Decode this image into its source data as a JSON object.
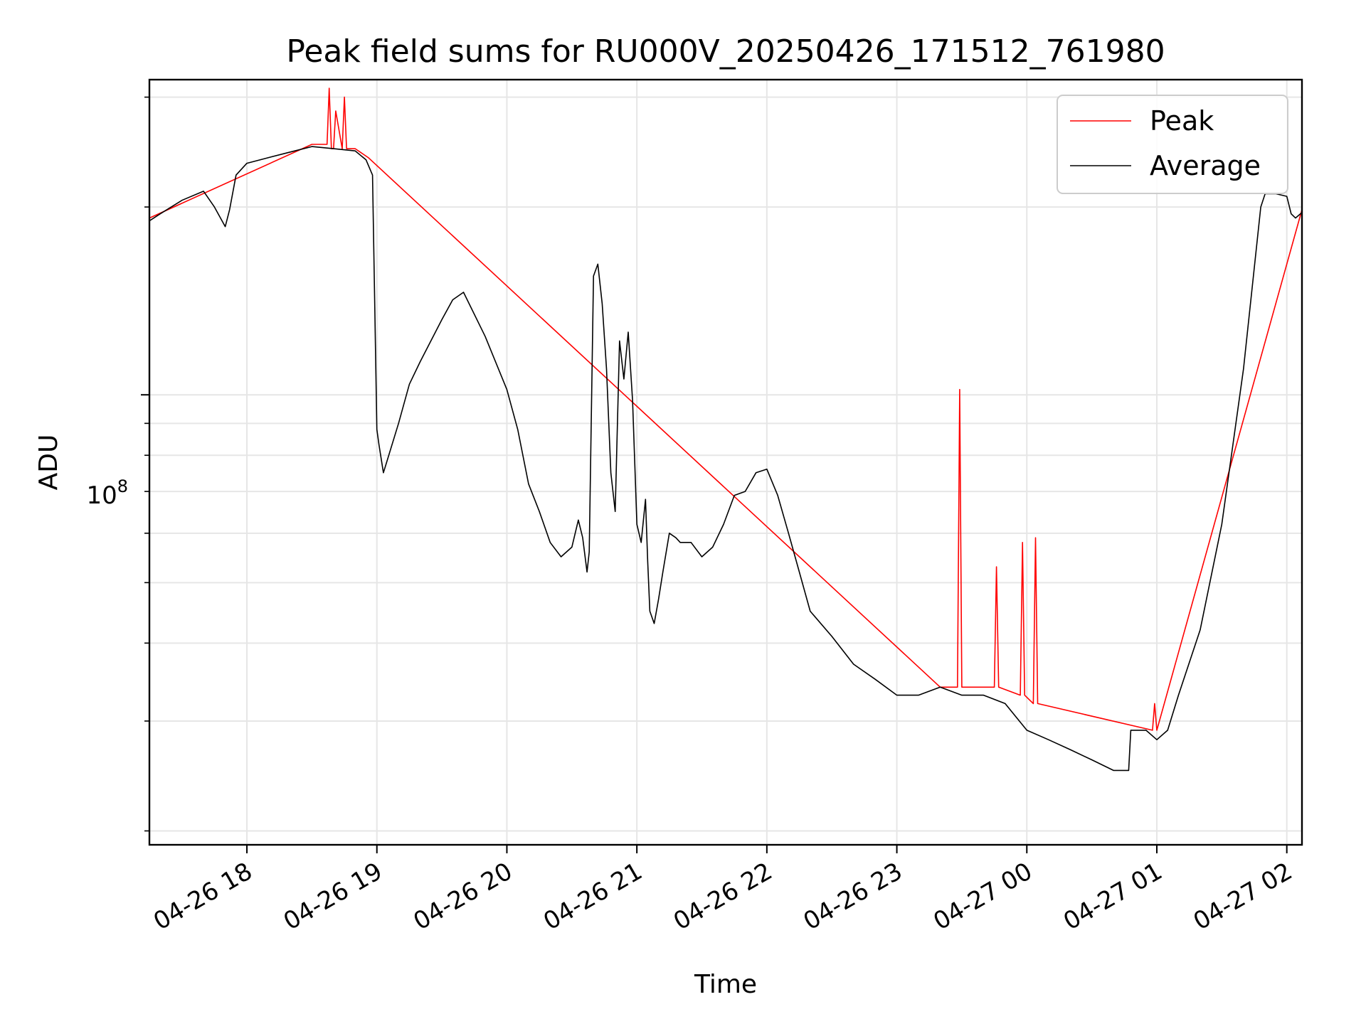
{
  "chart_data": {
    "type": "line",
    "title": "Peak field sums for RU000V_20250426_171512_761980",
    "xlabel": "Time",
    "ylabel": "ADU",
    "yscale": "log",
    "y_tick_label": "10^8",
    "y_tick_base": "10",
    "y_tick_exp": "8",
    "y_tick_value": 100000000,
    "ylim": [
      19000000,
      320000000
    ],
    "xlim": [
      "2025-04-26 17:15",
      "2025-04-27 02:07"
    ],
    "x_ticks": [
      {
        "t": "2025-04-26 18:00",
        "label": "04-26 18"
      },
      {
        "t": "2025-04-26 19:00",
        "label": "04-26 19"
      },
      {
        "t": "2025-04-26 20:00",
        "label": "04-26 20"
      },
      {
        "t": "2025-04-26 21:00",
        "label": "04-26 21"
      },
      {
        "t": "2025-04-26 22:00",
        "label": "04-26 22"
      },
      {
        "t": "2025-04-26 23:00",
        "label": "04-26 23"
      },
      {
        "t": "2025-04-27 00:00",
        "label": "04-27 00"
      },
      {
        "t": "2025-04-27 01:00",
        "label": "04-27 01"
      },
      {
        "t": "2025-04-27 02:00",
        "label": "04-27 02"
      }
    ],
    "grid": true,
    "legend_position": "top-right",
    "series": [
      {
        "name": "Average",
        "color": "#000000",
        "x": [
          "2025-04-26 17:15",
          "2025-04-26 17:20",
          "2025-04-26 17:30",
          "2025-04-26 17:40",
          "2025-04-26 17:45",
          "2025-04-26 17:50",
          "2025-04-26 17:52",
          "2025-04-26 17:55",
          "2025-04-26 18:00",
          "2025-04-26 18:10",
          "2025-04-26 18:20",
          "2025-04-26 18:30",
          "2025-04-26 18:40",
          "2025-04-26 18:50",
          "2025-04-26 18:55",
          "2025-04-26 18:58",
          "2025-04-26 19:00",
          "2025-04-26 19:01",
          "2025-04-26 19:03",
          "2025-04-26 19:05",
          "2025-04-26 19:10",
          "2025-04-26 19:15",
          "2025-04-26 19:20",
          "2025-04-26 19:30",
          "2025-04-26 19:35",
          "2025-04-26 19:40",
          "2025-04-26 19:50",
          "2025-04-26 20:00",
          "2025-04-26 20:05",
          "2025-04-26 20:10",
          "2025-04-26 20:15",
          "2025-04-26 20:20",
          "2025-04-26 20:25",
          "2025-04-26 20:30",
          "2025-04-26 20:33",
          "2025-04-26 20:35",
          "2025-04-26 20:37",
          "2025-04-26 20:38",
          "2025-04-26 20:40",
          "2025-04-26 20:42",
          "2025-04-26 20:44",
          "2025-04-26 20:46",
          "2025-04-26 20:48",
          "2025-04-26 20:50",
          "2025-04-26 20:52",
          "2025-04-26 20:54",
          "2025-04-26 20:56",
          "2025-04-26 20:58",
          "2025-04-26 21:00",
          "2025-04-26 21:02",
          "2025-04-26 21:04",
          "2025-04-26 21:05",
          "2025-04-26 21:06",
          "2025-04-26 21:08",
          "2025-04-26 21:10",
          "2025-04-26 21:12",
          "2025-04-26 21:15",
          "2025-04-26 21:18",
          "2025-04-26 21:20",
          "2025-04-26 21:25",
          "2025-04-26 21:30",
          "2025-04-26 21:35",
          "2025-04-26 21:40",
          "2025-04-26 21:45",
          "2025-04-26 21:50",
          "2025-04-26 21:55",
          "2025-04-26 22:00",
          "2025-04-26 22:05",
          "2025-04-26 22:10",
          "2025-04-26 22:15",
          "2025-04-26 22:20",
          "2025-04-26 22:30",
          "2025-04-26 22:40",
          "2025-04-26 22:50",
          "2025-04-26 23:00",
          "2025-04-26 23:10",
          "2025-04-26 23:20",
          "2025-04-26 23:30",
          "2025-04-26 23:40",
          "2025-04-26 23:50",
          "2025-04-27 00:00",
          "2025-04-27 00:10",
          "2025-04-27 00:20",
          "2025-04-27 00:30",
          "2025-04-27 00:40",
          "2025-04-27 00:47",
          "2025-04-27 00:48",
          "2025-04-27 00:55",
          "2025-04-27 01:00",
          "2025-04-27 01:05",
          "2025-04-27 01:10",
          "2025-04-27 01:20",
          "2025-04-27 01:30",
          "2025-04-27 01:40",
          "2025-04-27 01:48",
          "2025-04-27 01:50",
          "2025-04-27 01:55",
          "2025-04-27 02:00",
          "2025-04-27 02:02",
          "2025-04-27 02:04",
          "2025-04-27 02:07"
        ],
        "values": [
          190000000,
          195000000,
          205000000,
          212000000,
          200000000,
          186000000,
          198000000,
          225000000,
          235000000,
          240000000,
          245000000,
          250000000,
          248000000,
          246000000,
          238000000,
          225000000,
          88000000,
          83000000,
          75000000,
          79000000,
          90000000,
          104000000,
          113000000,
          132000000,
          142000000,
          146000000,
          124000000,
          102000000,
          88000000,
          72000000,
          65000000,
          58000000,
          55000000,
          57000000,
          63000000,
          59000000,
          52000000,
          56000000,
          155000000,
          162000000,
          140000000,
          110000000,
          75000000,
          65000000,
          122000000,
          106000000,
          126000000,
          98000000,
          62000000,
          58000000,
          68000000,
          54000000,
          45000000,
          43000000,
          47000000,
          52000000,
          60000000,
          59000000,
          58000000,
          58000000,
          55000000,
          57000000,
          62000000,
          69000000,
          70000000,
          75000000,
          76000000,
          69000000,
          60000000,
          52000000,
          45000000,
          41000000,
          37000000,
          35000000,
          33000000,
          33000000,
          34000000,
          33000000,
          33000000,
          32000000,
          29000000,
          28000000,
          27000000,
          26000000,
          25000000,
          25000000,
          29000000,
          29000000,
          28000000,
          29000000,
          33000000,
          42000000,
          62000000,
          110000000,
          200000000,
          210000000,
          210000000,
          208000000,
          195000000,
          192000000,
          196000000
        ]
      },
      {
        "name": "Peak",
        "color": "#ff0000",
        "x": [
          "2025-04-26 17:15",
          "2025-04-26 18:30",
          "2025-04-26 18:37",
          "2025-04-26 18:38",
          "2025-04-26 18:39",
          "2025-04-26 18:40",
          "2025-04-26 18:41",
          "2025-04-26 18:44",
          "2025-04-26 18:45",
          "2025-04-26 18:46",
          "2025-04-26 18:50",
          "2025-04-26 18:56",
          "2025-04-26 23:20",
          "2025-04-26 23:25",
          "2025-04-26 23:28",
          "2025-04-26 23:29",
          "2025-04-26 23:30",
          "2025-04-26 23:45",
          "2025-04-26 23:46",
          "2025-04-26 23:47",
          "2025-04-26 23:57",
          "2025-04-26 23:58",
          "2025-04-26 23:59",
          "2025-04-27 00:03",
          "2025-04-27 00:04",
          "2025-04-27 00:05",
          "2025-04-27 00:58",
          "2025-04-27 00:59",
          "2025-04-27 01:00",
          "2025-04-27 02:07"
        ],
        "values": [
          192000000,
          252000000,
          252000000,
          310000000,
          248000000,
          248000000,
          285000000,
          248000000,
          300000000,
          248000000,
          248000000,
          240000000,
          34000000,
          34000000,
          34000000,
          102000000,
          34000000,
          34000000,
          53000000,
          34000000,
          33000000,
          58000000,
          33000000,
          32000000,
          59000000,
          32000000,
          29000000,
          32000000,
          29000000,
          198000000
        ]
      }
    ]
  }
}
